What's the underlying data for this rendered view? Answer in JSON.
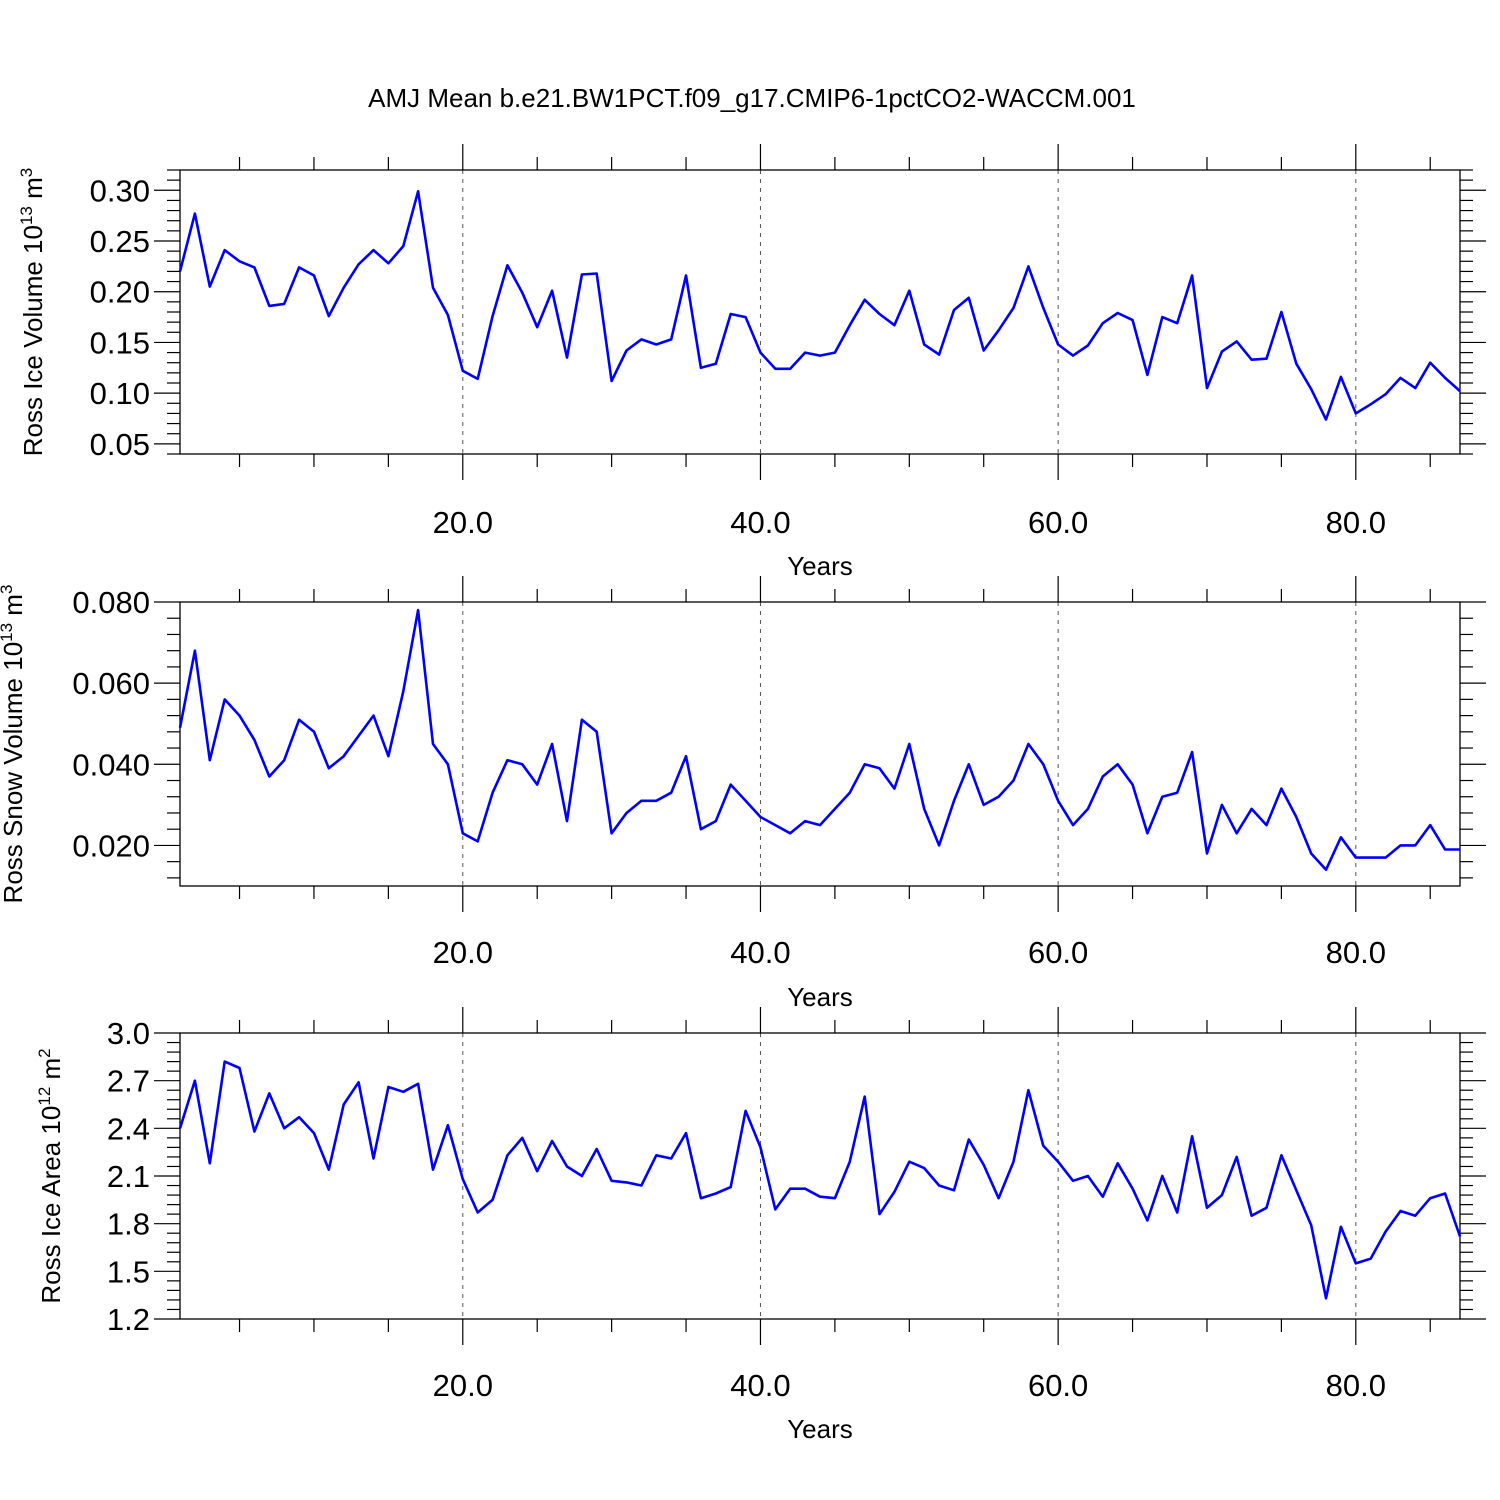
{
  "figure": {
    "title": "AMJ Mean b.e21.BW1PCT.f09_g17.CMIP6-1pctCO2-WACCM.001"
  },
  "chart_data": [
    {
      "type": "line",
      "xlabel": "Years",
      "ylabel": "Ross Ice Volume 10",
      "ylabel_exp": "13",
      "ylabel_unit": " m",
      "ylabel_unit_exp": "3",
      "xlim": [
        1,
        87
      ],
      "ylim": [
        0.04,
        0.32
      ],
      "x_ticks": [
        20,
        40,
        60,
        80
      ],
      "x_tick_labels": [
        "20.0",
        "40.0",
        "60.0",
        "80.0"
      ],
      "y_ticks": [
        0.05,
        0.1,
        0.15,
        0.2,
        0.25,
        0.3
      ],
      "y_tick_labels": [
        "0.05",
        "0.10",
        "0.15",
        "0.20",
        "0.25",
        "0.30"
      ],
      "grid": "vertical dashed at major x ticks",
      "color": "#0000ff",
      "x": [
        1,
        2,
        3,
        4,
        5,
        6,
        7,
        8,
        9,
        10,
        11,
        12,
        13,
        14,
        15,
        16,
        17,
        18,
        19,
        20,
        21,
        22,
        23,
        24,
        25,
        26,
        27,
        28,
        29,
        30,
        31,
        32,
        33,
        34,
        35,
        36,
        37,
        38,
        39,
        40,
        41,
        42,
        43,
        44,
        45,
        46,
        47,
        48,
        49,
        50,
        51,
        52,
        53,
        54,
        55,
        56,
        57,
        58,
        59,
        60,
        61,
        62,
        63,
        64,
        65,
        66,
        67,
        68,
        69,
        70,
        71,
        72,
        73,
        74,
        75,
        76,
        77,
        78,
        79,
        80,
        81,
        82,
        83,
        84,
        85,
        86,
        87
      ],
      "values": [
        0.22,
        0.277,
        0.205,
        0.241,
        0.23,
        0.224,
        0.186,
        0.188,
        0.224,
        0.216,
        0.176,
        0.204,
        0.227,
        0.241,
        0.228,
        0.245,
        0.299,
        0.204,
        0.177,
        0.122,
        0.114,
        0.176,
        0.226,
        0.199,
        0.165,
        0.201,
        0.135,
        0.217,
        0.218,
        0.112,
        0.142,
        0.153,
        0.148,
        0.153,
        0.216,
        0.125,
        0.129,
        0.178,
        0.175,
        0.14,
        0.124,
        0.124,
        0.14,
        0.137,
        0.14,
        0.167,
        0.192,
        0.178,
        0.167,
        0.201,
        0.148,
        0.138,
        0.182,
        0.194,
        0.142,
        0.162,
        0.184,
        0.225,
        0.184,
        0.148,
        0.137,
        0.147,
        0.169,
        0.179,
        0.172,
        0.118,
        0.175,
        0.169,
        0.216,
        0.105,
        0.141,
        0.151,
        0.133,
        0.134,
        0.18,
        0.129,
        0.104,
        0.074,
        0.116,
        0.08,
        0.089,
        0.099,
        0.115,
        0.105,
        0.13,
        0.115,
        0.102
      ]
    },
    {
      "type": "line",
      "xlabel": "Years",
      "ylabel": "Ross Snow Volume 10",
      "ylabel_exp": "13",
      "ylabel_unit": " m",
      "ylabel_unit_exp": "3",
      "xlim": [
        1,
        87
      ],
      "ylim": [
        0.01,
        0.08
      ],
      "x_ticks": [
        20,
        40,
        60,
        80
      ],
      "x_tick_labels": [
        "20.0",
        "40.0",
        "60.0",
        "80.0"
      ],
      "y_ticks": [
        0.02,
        0.04,
        0.06,
        0.08
      ],
      "y_tick_labels": [
        "0.020",
        "0.040",
        "0.060",
        "0.080"
      ],
      "grid": "vertical dashed at major x ticks",
      "color": "#0000ff",
      "x": [
        1,
        2,
        3,
        4,
        5,
        6,
        7,
        8,
        9,
        10,
        11,
        12,
        13,
        14,
        15,
        16,
        17,
        18,
        19,
        20,
        21,
        22,
        23,
        24,
        25,
        26,
        27,
        28,
        29,
        30,
        31,
        32,
        33,
        34,
        35,
        36,
        37,
        38,
        39,
        40,
        41,
        42,
        43,
        44,
        45,
        46,
        47,
        48,
        49,
        50,
        51,
        52,
        53,
        54,
        55,
        56,
        57,
        58,
        59,
        60,
        61,
        62,
        63,
        64,
        65,
        66,
        67,
        68,
        69,
        70,
        71,
        72,
        73,
        74,
        75,
        76,
        77,
        78,
        79,
        80,
        81,
        82,
        83,
        84,
        85,
        86,
        87
      ],
      "values": [
        0.049,
        0.068,
        0.041,
        0.056,
        0.052,
        0.046,
        0.037,
        0.041,
        0.051,
        0.048,
        0.039,
        0.042,
        0.047,
        0.052,
        0.042,
        0.058,
        0.078,
        0.045,
        0.04,
        0.023,
        0.021,
        0.033,
        0.041,
        0.04,
        0.035,
        0.045,
        0.026,
        0.051,
        0.048,
        0.023,
        0.028,
        0.031,
        0.031,
        0.033,
        0.042,
        0.024,
        0.026,
        0.035,
        0.031,
        0.027,
        0.025,
        0.023,
        0.026,
        0.025,
        0.029,
        0.033,
        0.04,
        0.039,
        0.034,
        0.045,
        0.029,
        0.02,
        0.031,
        0.04,
        0.03,
        0.032,
        0.036,
        0.045,
        0.04,
        0.031,
        0.025,
        0.029,
        0.037,
        0.04,
        0.035,
        0.023,
        0.032,
        0.033,
        0.043,
        0.018,
        0.03,
        0.023,
        0.029,
        0.025,
        0.034,
        0.027,
        0.018,
        0.014,
        0.022,
        0.017,
        0.017,
        0.017,
        0.02,
        0.02,
        0.025,
        0.019,
        0.019
      ]
    },
    {
      "type": "line",
      "xlabel": "Years",
      "ylabel": "Ross Ice Area 10",
      "ylabel_exp": "12",
      "ylabel_unit": " m",
      "ylabel_unit_exp": "2",
      "xlim": [
        1,
        87
      ],
      "ylim": [
        1.2,
        3.0
      ],
      "x_ticks": [
        20,
        40,
        60,
        80
      ],
      "x_tick_labels": [
        "20.0",
        "40.0",
        "60.0",
        "80.0"
      ],
      "y_ticks": [
        1.2,
        1.5,
        1.8,
        2.1,
        2.4,
        2.7,
        3.0
      ],
      "y_tick_labels": [
        "1.2",
        "1.5",
        "1.8",
        "2.1",
        "2.4",
        "2.7",
        "3.0"
      ],
      "grid": "vertical dashed at major x ticks",
      "color": "#0000ff",
      "x": [
        1,
        2,
        3,
        4,
        5,
        6,
        7,
        8,
        9,
        10,
        11,
        12,
        13,
        14,
        15,
        16,
        17,
        18,
        19,
        20,
        21,
        22,
        23,
        24,
        25,
        26,
        27,
        28,
        29,
        30,
        31,
        32,
        33,
        34,
        35,
        36,
        37,
        38,
        39,
        40,
        41,
        42,
        43,
        44,
        45,
        46,
        47,
        48,
        49,
        50,
        51,
        52,
        53,
        54,
        55,
        56,
        57,
        58,
        59,
        60,
        61,
        62,
        63,
        64,
        65,
        66,
        67,
        68,
        69,
        70,
        71,
        72,
        73,
        74,
        75,
        76,
        77,
        78,
        79,
        80,
        81,
        82,
        83,
        84,
        85,
        86,
        87
      ],
      "values": [
        2.4,
        2.7,
        2.18,
        2.82,
        2.78,
        2.38,
        2.62,
        2.4,
        2.47,
        2.37,
        2.14,
        2.55,
        2.69,
        2.21,
        2.66,
        2.63,
        2.68,
        2.14,
        2.42,
        2.08,
        1.87,
        1.95,
        2.23,
        2.34,
        2.13,
        2.32,
        2.16,
        2.1,
        2.27,
        2.07,
        2.06,
        2.04,
        2.23,
        2.21,
        2.37,
        1.96,
        1.99,
        2.03,
        2.51,
        2.28,
        1.89,
        2.02,
        2.02,
        1.97,
        1.96,
        2.19,
        2.6,
        1.86,
        2.0,
        2.19,
        2.15,
        2.04,
        2.01,
        2.33,
        2.17,
        1.96,
        2.19,
        2.64,
        2.29,
        2.19,
        2.07,
        2.1,
        1.97,
        2.18,
        2.02,
        1.82,
        2.1,
        1.87,
        2.35,
        1.9,
        1.98,
        2.22,
        1.85,
        1.9,
        2.23,
        2.01,
        1.79,
        1.33,
        1.78,
        1.55,
        1.58,
        1.75,
        1.88,
        1.85,
        1.96,
        1.99,
        1.72
      ]
    }
  ]
}
